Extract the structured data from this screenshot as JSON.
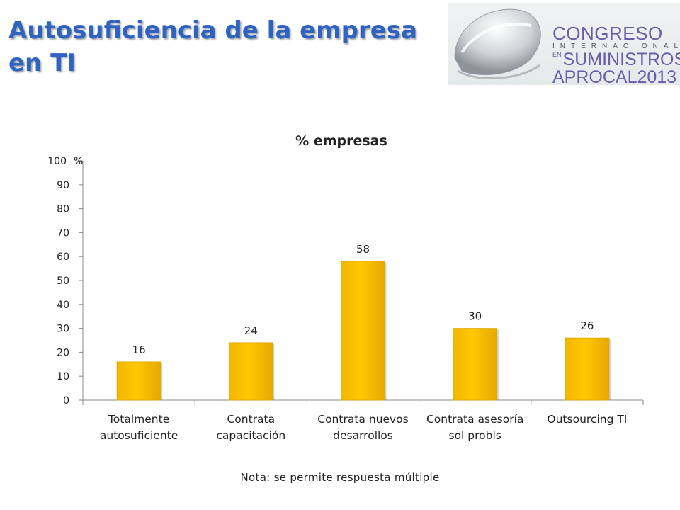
{
  "slide": {
    "title_line1": "Autosuficiencia de la empresa",
    "title_line2": "en TI",
    "note": "Nota: se permite respuesta múltiple"
  },
  "logo": {
    "line1": "CONGRESO",
    "line2": "INTERNACIONAL",
    "line3_prefix": "EN",
    "line3": "SUMINISTROS",
    "line4": "APROCAL2013"
  },
  "colors": {
    "title": "#2e63c2",
    "bar": "#ffc800",
    "logo_text": "#6a5cab"
  },
  "chart_data": {
    "type": "bar",
    "title": "% empresas",
    "ylabel": "",
    "xlabel": "",
    "y_unit_label": "%",
    "ylim": [
      0,
      100
    ],
    "yticks": [
      0,
      10,
      20,
      30,
      40,
      50,
      60,
      70,
      80,
      90,
      100
    ],
    "categories": [
      [
        "Totalmente",
        "autosuficiente"
      ],
      [
        "Contrata",
        "capacitación"
      ],
      [
        "Contrata nuevos",
        "desarrollos"
      ],
      [
        "Contrata asesoría",
        "sol probls"
      ],
      [
        "Outsourcing TI"
      ]
    ],
    "values": [
      16,
      24,
      58,
      30,
      26
    ],
    "grid": false,
    "legend": "none"
  }
}
